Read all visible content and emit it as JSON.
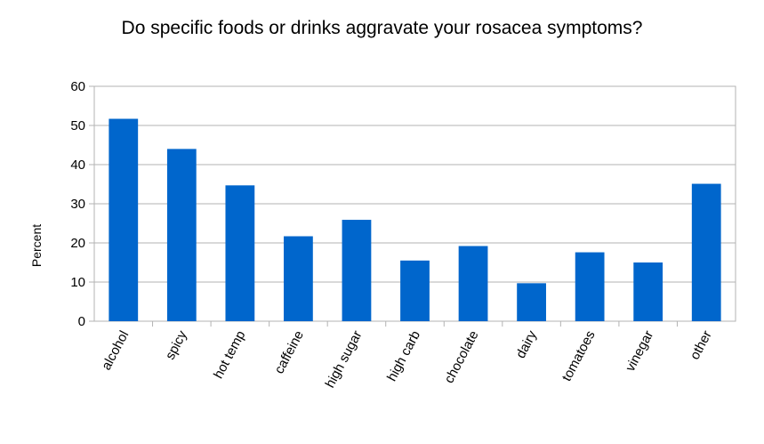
{
  "chart_data": {
    "type": "bar",
    "title": "Do specific foods or drinks aggravate your rosacea symptoms?",
    "xlabel": "",
    "ylabel": "Percent",
    "ylim": [
      0,
      60
    ],
    "yticks": [
      0,
      10,
      20,
      30,
      40,
      50,
      60
    ],
    "grid": true,
    "legend": "none",
    "bar_color": "#0066cc",
    "categories": [
      "alcohol",
      "spicy",
      "hot temp",
      "caffeine",
      "high sugar",
      "high carb",
      "chocolate",
      "dairy",
      "tomatoes",
      "vinegar",
      "other"
    ],
    "values": [
      51.7,
      44,
      34.7,
      21.7,
      25.9,
      15.5,
      19.2,
      9.7,
      17.6,
      15,
      35.1
    ]
  }
}
